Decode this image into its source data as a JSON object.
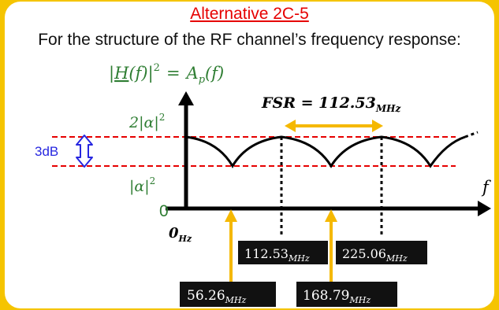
{
  "title": "Alternative 2C-5",
  "subtitle": "For the structure of the RF channel’s frequency response:",
  "formula": {
    "lhs_open": "|",
    "lhs_H": "H",
    "lhs_arg": "(f)",
    "lhs_close": "|",
    "lhs_power": "2",
    "equals": "=",
    "rhs_A": "A",
    "rhs_sub": "p",
    "rhs_arg": "(f)"
  },
  "fsr": {
    "label": "FSR = 112.53",
    "unit": "MHz"
  },
  "y_labels": {
    "top_main": "2|α|",
    "top_power": "2",
    "bottom_main": "|α|",
    "bottom_power": "2",
    "zero": "0"
  },
  "db_label": "3dB",
  "x_axis": {
    "label": "f",
    "origin_main": "0",
    "origin_unit": "Hz"
  },
  "frequencies": [
    {
      "value": "112.53",
      "unit": "MHz"
    },
    {
      "value": "225.06",
      "unit": "MHz"
    },
    {
      "value": "56.26",
      "unit": "MHz"
    },
    {
      "value": "168.79",
      "unit": "MHz"
    }
  ],
  "colors": {
    "background_frame": "#f5c400",
    "title": "#e60000",
    "formula": "#2e7d32",
    "dashed": "#e60000",
    "arrow": "#f5b800",
    "db": "#2727e0",
    "label_box": "#111111"
  }
}
